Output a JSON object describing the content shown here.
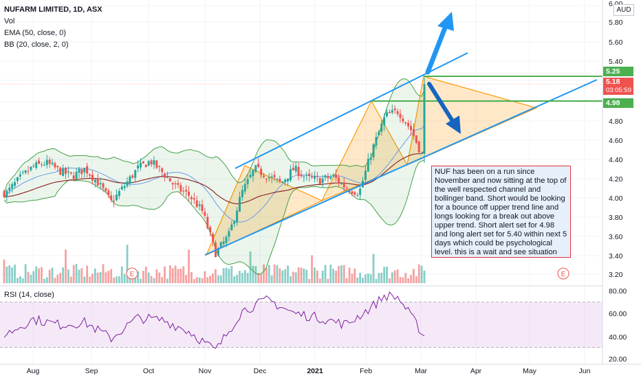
{
  "legend": {
    "title": "NUFARM LIMITED, 1D, ASX",
    "vol": "Vol",
    "ema": "EMA (50, close, 0)",
    "bb": "BB (20, close, 2, 0)",
    "rsi": "RSI (14, close)"
  },
  "currency": "AUD",
  "price_badges": {
    "upper": "5.25",
    "current": "5.18",
    "countdown": "03:05:59",
    "lower": "4.98"
  },
  "earnings_marker": "E",
  "note": "NUF has been on a run since November and now sitting at the top of the well respected channel and bollinger band. Short would be looking for a bounce off upper trend line and longs looking for a break out above upper trend. Short alert set for 4.98 and long alert set for 5.40 within next 5 days which could be psychological level. this is a wait and see situation for now",
  "colors": {
    "up": "#26a69a",
    "down": "#ef5350",
    "bb": "#43a047",
    "ema": "#8d2b2b",
    "basis": "#2962ff",
    "channel": "#2196f3",
    "triangle": "#ff9800",
    "level": "#4caf50",
    "rsi": "#7b1fa2"
  },
  "chart_data": {
    "type": "candlestick",
    "symbol": "NUFARM LIMITED",
    "interval": "1D",
    "exchange": "ASX",
    "y_axis_ticks": [
      "6.00",
      "5.80",
      "5.60",
      "5.40",
      "5.20",
      "5.00",
      "4.80",
      "4.60",
      "4.40",
      "4.20",
      "4.00",
      "3.80",
      "3.60",
      "3.40",
      "3.20"
    ],
    "ylim": [
      3.14,
      6.0
    ],
    "x_axis_ticks": [
      "Aug",
      "Sep",
      "Oct",
      "Nov",
      "Dec",
      "2021",
      "Feb",
      "Mar",
      "Apr",
      "May",
      "Jun"
    ],
    "horizontal_levels": [
      5.25,
      4.98
    ],
    "current_price": 5.18,
    "approx_close": [
      [
        "2020-07-13",
        4.05
      ],
      [
        "2020-07-20",
        4.2
      ],
      [
        "2020-07-27",
        4.32
      ],
      [
        "2020-08-03",
        4.36
      ],
      [
        "2020-08-10",
        4.28
      ],
      [
        "2020-08-17",
        4.22
      ],
      [
        "2020-08-24",
        4.3
      ],
      [
        "2020-08-31",
        4.15
      ],
      [
        "2020-09-07",
        3.95
      ],
      [
        "2020-09-14",
        4.12
      ],
      [
        "2020-09-21",
        4.3
      ],
      [
        "2020-09-28",
        4.38
      ],
      [
        "2020-10-05",
        4.25
      ],
      [
        "2020-10-12",
        4.1
      ],
      [
        "2020-10-19",
        4.02
      ],
      [
        "2020-10-26",
        3.85
      ],
      [
        "2020-11-02",
        3.42
      ],
      [
        "2020-11-09",
        3.6
      ],
      [
        "2020-11-16",
        4.05
      ],
      [
        "2020-11-23",
        4.3
      ],
      [
        "2020-11-30",
        4.22
      ],
      [
        "2020-12-07",
        4.15
      ],
      [
        "2020-12-14",
        4.3
      ],
      [
        "2020-12-21",
        4.2
      ],
      [
        "2020-12-28",
        4.18
      ],
      [
        "2021-01-04",
        4.22
      ],
      [
        "2021-01-11",
        4.1
      ],
      [
        "2021-01-18",
        4.05
      ],
      [
        "2021-01-25",
        4.5
      ],
      [
        "2021-02-01",
        4.85
      ],
      [
        "2021-02-08",
        4.9
      ],
      [
        "2021-02-15",
        4.7
      ],
      [
        "2021-02-22",
        4.38
      ],
      [
        "2021-03-01",
        4.98
      ],
      [
        "2021-03-05",
        5.18
      ]
    ],
    "rsi": {
      "name": "RSI (14, close)",
      "y_axis_ticks": [
        "80.00",
        "60.00",
        "40.00",
        "20.00"
      ],
      "ylim": [
        17,
        87
      ],
      "bands": [
        70,
        30
      ],
      "approx_values": [
        [
          "2020-07-13",
          42
        ],
        [
          "2020-07-27",
          55
        ],
        [
          "2020-08-10",
          50
        ],
        [
          "2020-08-24",
          52
        ],
        [
          "2020-09-07",
          38
        ],
        [
          "2020-09-21",
          56
        ],
        [
          "2020-10-05",
          54
        ],
        [
          "2020-10-19",
          44
        ],
        [
          "2020-11-02",
          27
        ],
        [
          "2020-11-16",
          62
        ],
        [
          "2020-11-30",
          72
        ],
        [
          "2020-12-14",
          60
        ],
        [
          "2020-12-28",
          56
        ],
        [
          "2021-01-11",
          50
        ],
        [
          "2021-01-25",
          66
        ],
        [
          "2021-02-01",
          76
        ],
        [
          "2021-02-08",
          74
        ],
        [
          "2021-02-22",
          40
        ],
        [
          "2021-03-01",
          58
        ],
        [
          "2021-03-05",
          66
        ]
      ]
    }
  }
}
